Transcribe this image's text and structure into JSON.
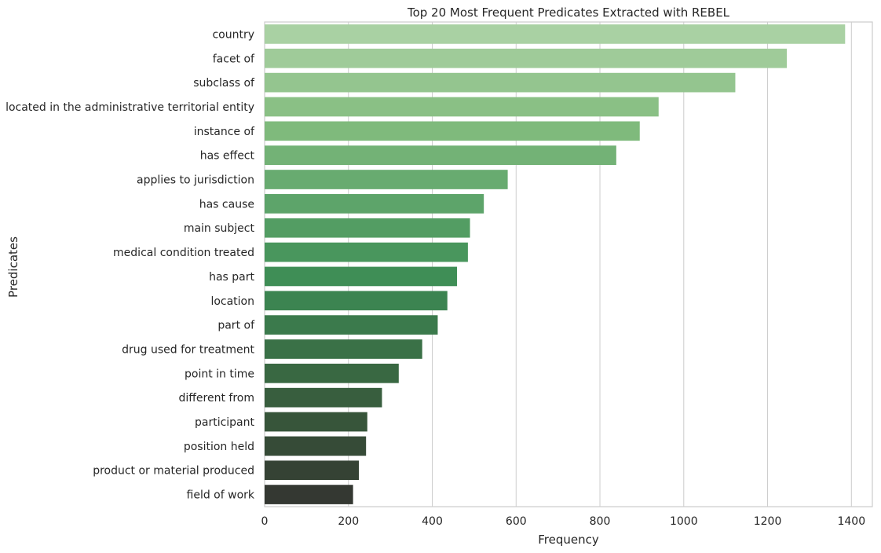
{
  "chart_data": {
    "type": "bar",
    "orientation": "horizontal",
    "title": "Top 20 Most Frequent Predicates Extracted with REBEL",
    "xlabel": "Frequency",
    "ylabel": "Predicates",
    "xlim": [
      0,
      1450
    ],
    "xticks": [
      0,
      200,
      400,
      600,
      800,
      1000,
      1200,
      1400
    ],
    "grid": "vertical",
    "palette": "greens_d (light to dark)",
    "categories": [
      "country",
      "facet of",
      "subclass of",
      "located in the administrative territorial entity",
      "instance of",
      "has effect",
      "applies to jurisdiction",
      "has cause",
      "main subject",
      "medical condition treated",
      "has part",
      "location",
      "part of",
      "drug used for treatment",
      "point in time",
      "different from",
      "participant",
      "position held",
      "product or material produced",
      "field of work"
    ],
    "values": [
      1385,
      1246,
      1123,
      940,
      895,
      839,
      580,
      523,
      490,
      485,
      459,
      436,
      413,
      376,
      320,
      280,
      245,
      242,
      225,
      211
    ],
    "colors": [
      "#a9d1a3",
      "#9fcb99",
      "#94c58f",
      "#8ac085",
      "#7fba7c",
      "#73b276",
      "#68ab70",
      "#5da46a",
      "#539d63",
      "#49965d",
      "#3f8e56",
      "#3c8451",
      "#3b7a4c",
      "#3a7147",
      "#396842",
      "#385e3e",
      "#37553a",
      "#364b37",
      "#354234",
      "#343832"
    ]
  }
}
